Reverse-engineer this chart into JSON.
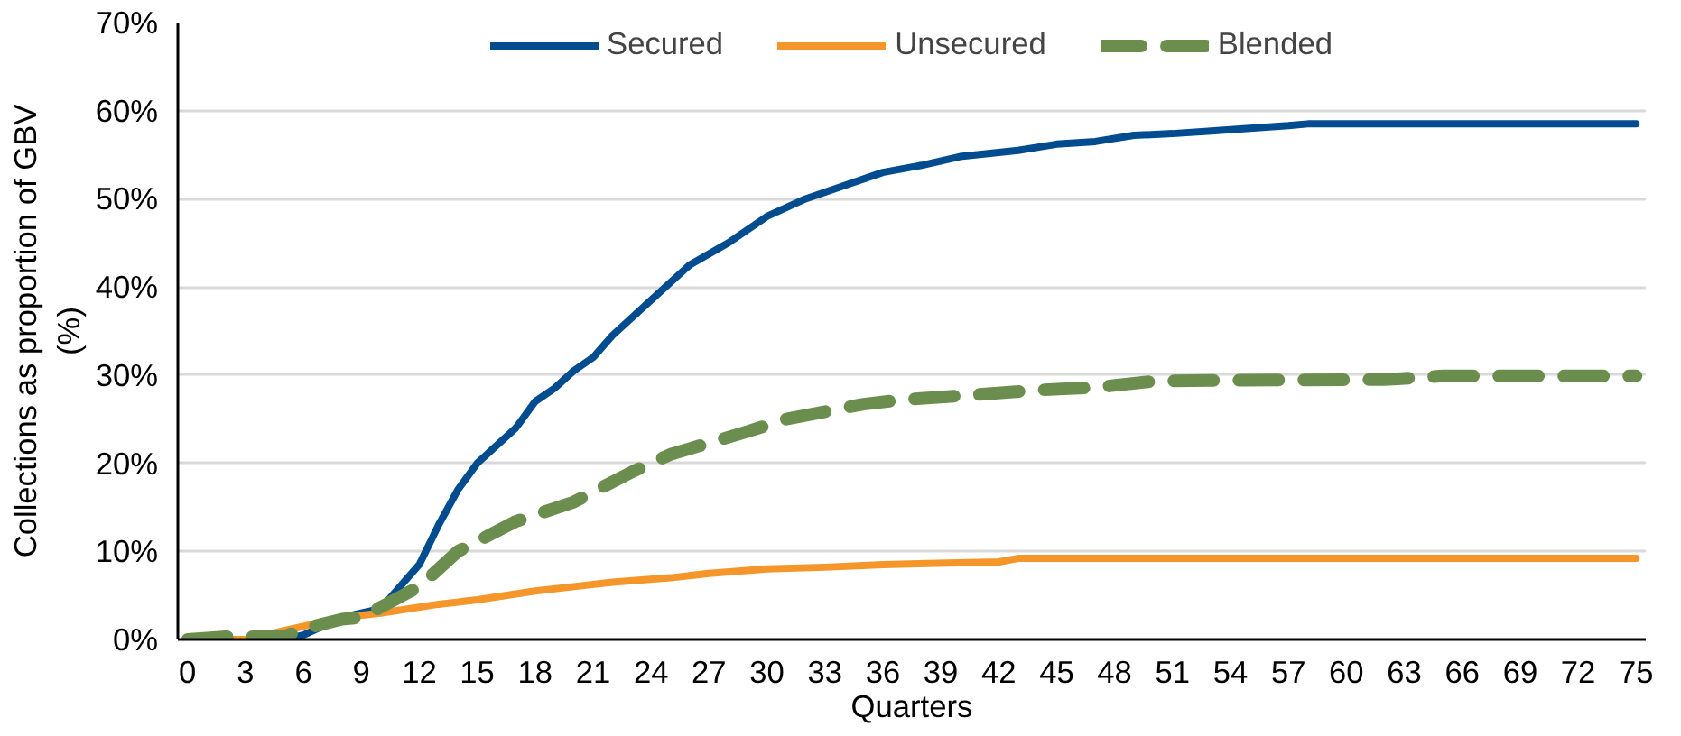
{
  "chart_data": {
    "type": "line",
    "xlabel": "Quarters",
    "ylabel": "Collections as proportion of GBV\n(%)",
    "xlim": [
      -0.5,
      75.5
    ],
    "ylim": [
      0,
      70
    ],
    "xticks": [
      0,
      3,
      6,
      9,
      12,
      15,
      18,
      21,
      24,
      27,
      30,
      33,
      36,
      39,
      42,
      45,
      48,
      51,
      54,
      57,
      60,
      63,
      66,
      69,
      72,
      75
    ],
    "yticks": [
      {
        "value": 0,
        "label": "0%"
      },
      {
        "value": 10,
        "label": "10%"
      },
      {
        "value": 20,
        "label": "20%"
      },
      {
        "value": 30,
        "label": "30%"
      },
      {
        "value": 40,
        "label": "40%"
      },
      {
        "value": 50,
        "label": "50%"
      },
      {
        "value": 60,
        "label": "60%"
      },
      {
        "value": 70,
        "label": "70%"
      }
    ],
    "grid": "y",
    "legend": "top",
    "marker": "none",
    "series": [
      {
        "name": "Secured",
        "color": "#004c8f",
        "line_style": "solid",
        "x": [
          0,
          5,
          6,
          7,
          8,
          9,
          10,
          11,
          12,
          13,
          14,
          15,
          16,
          17,
          18,
          19,
          20,
          21,
          22,
          24,
          26,
          28,
          30,
          31,
          32,
          34,
          36,
          38,
          40,
          43,
          45,
          47,
          49,
          51,
          53,
          55,
          57,
          58,
          75
        ],
        "values": [
          0,
          0,
          0.5,
          1.5,
          2.5,
          3,
          3.5,
          6,
          8.5,
          13,
          17,
          20,
          22,
          24,
          27,
          28.5,
          30.5,
          32,
          34.5,
          38.5,
          42.5,
          45,
          48,
          49,
          50,
          51.5,
          53,
          53.8,
          54.8,
          55.5,
          56.2,
          56.5,
          57.2,
          57.4,
          57.7,
          58,
          58.3,
          58.5,
          58.5
        ]
      },
      {
        "name": "Unsecured",
        "color": "#f4962a",
        "line_style": "solid",
        "x": [
          0,
          3,
          4,
          5,
          6,
          8,
          10,
          13,
          15,
          18,
          20,
          22,
          25,
          27,
          30,
          33,
          36,
          42,
          43,
          75
        ],
        "values": [
          0,
          0,
          0.5,
          1,
          1.5,
          2.5,
          3,
          4,
          4.5,
          5.5,
          6,
          6.5,
          7,
          7.5,
          8,
          8.2,
          8.5,
          8.8,
          9.2,
          9.2
        ]
      },
      {
        "name": "Blended",
        "color": "#6b8e4e",
        "line_style": "dashed",
        "x": [
          0,
          2,
          5,
          6,
          8,
          9,
          12,
          14,
          17,
          20,
          23,
          25,
          29,
          31,
          35,
          37,
          41,
          44,
          47,
          50,
          53,
          62,
          65,
          75
        ],
        "values": [
          0,
          0.3,
          0.3,
          1.2,
          2.3,
          2.5,
          6,
          10,
          13.4,
          15.6,
          19,
          21,
          23.6,
          25,
          26.7,
          27.2,
          27.8,
          28.3,
          28.6,
          29.3,
          29.4,
          29.5,
          29.9,
          29.9
        ]
      }
    ]
  }
}
